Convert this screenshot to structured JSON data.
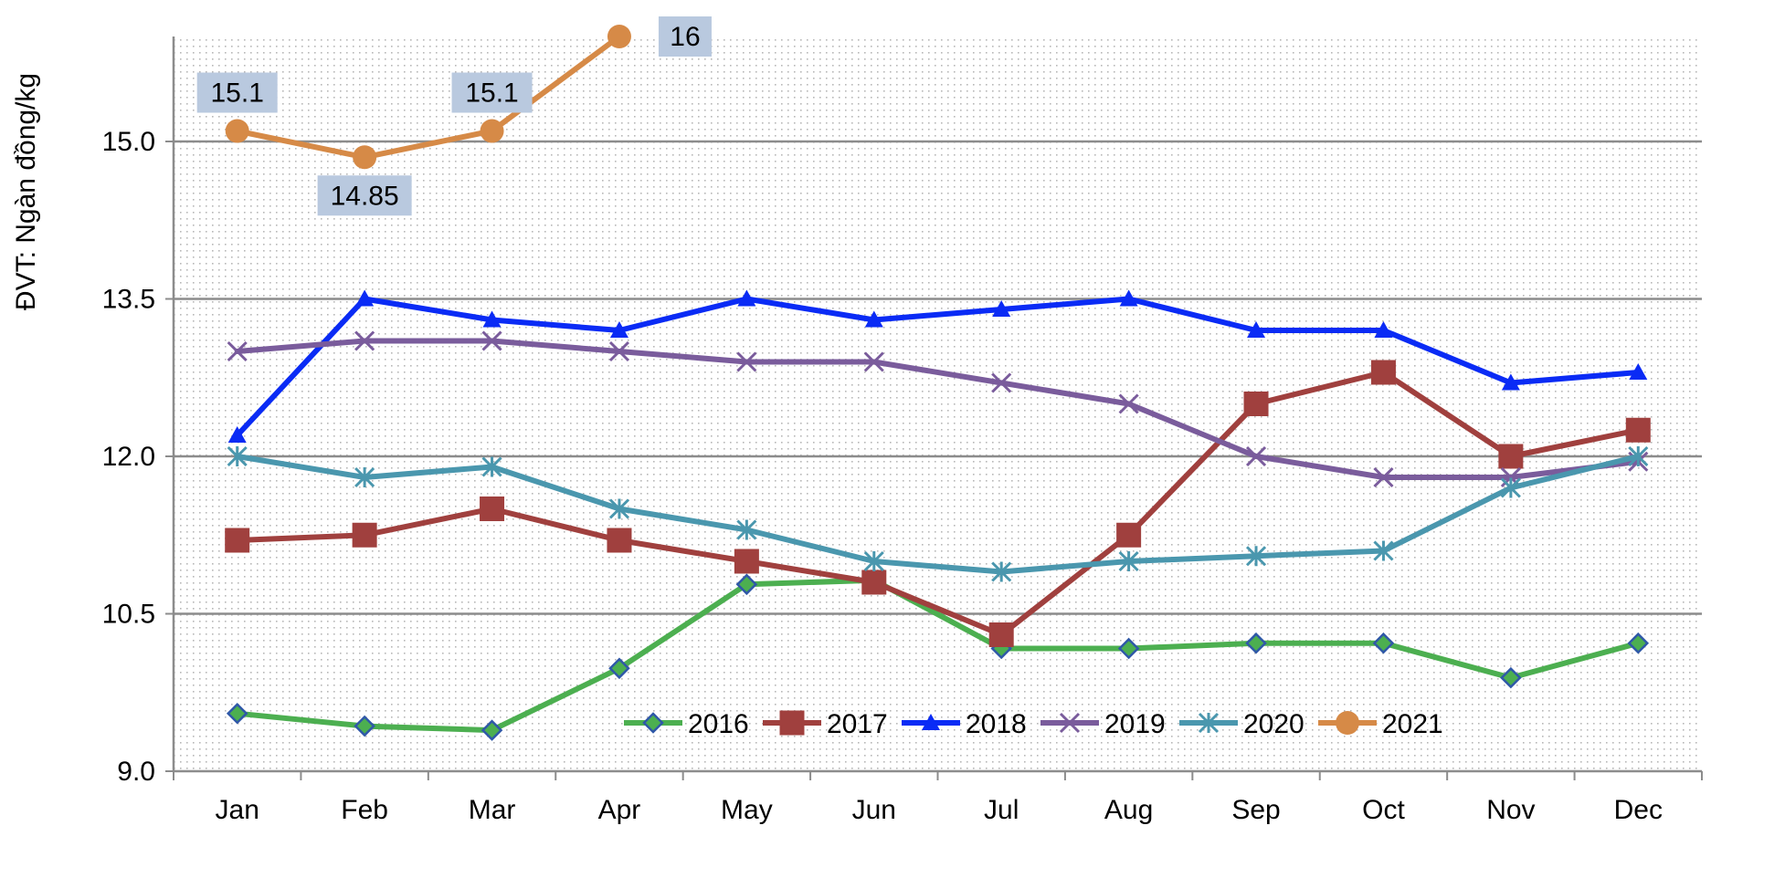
{
  "chart_data": {
    "type": "line",
    "title": "",
    "xlabel": "",
    "ylabel": "ĐVT: Ngàn đồng/kg",
    "categories": [
      "Jan",
      "Feb",
      "Mar",
      "Apr",
      "May",
      "Jun",
      "Jul",
      "Aug",
      "Sep",
      "Oct",
      "Nov",
      "Dec"
    ],
    "y_ticks": [
      "9.0",
      "10.5",
      "12.0",
      "13.5",
      "15.0"
    ],
    "ylim": [
      9.0,
      16.0
    ],
    "grid": true,
    "legend_position": "bottom-right inside",
    "series": [
      {
        "name": "2016",
        "color": "#4CAF50",
        "marker": "diamond",
        "values": [
          9.55,
          9.43,
          9.39,
          9.98,
          10.78,
          10.82,
          10.17,
          10.17,
          10.22,
          10.22,
          9.89,
          10.22
        ]
      },
      {
        "name": "2017",
        "color": "#A0403E",
        "marker": "square",
        "values": [
          11.2,
          11.25,
          11.5,
          11.2,
          11.0,
          10.8,
          10.3,
          11.25,
          12.5,
          12.8,
          12.0,
          12.25
        ]
      },
      {
        "name": "2018",
        "color": "#0A2BF5",
        "marker": "triangle",
        "values": [
          12.2,
          13.5,
          13.3,
          13.2,
          13.5,
          13.3,
          13.4,
          13.5,
          13.2,
          13.2,
          12.7,
          12.8
        ]
      },
      {
        "name": "2019",
        "color": "#7A5C9C",
        "marker": "x",
        "values": [
          13.0,
          13.1,
          13.1,
          13.0,
          12.9,
          12.9,
          12.7,
          12.5,
          12.0,
          11.8,
          11.8,
          11.95
        ]
      },
      {
        "name": "2020",
        "color": "#4A97AE",
        "marker": "asterisk",
        "values": [
          12.0,
          11.8,
          11.9,
          11.5,
          11.3,
          11.0,
          10.9,
          11.0,
          11.05,
          11.1,
          11.7,
          12.0
        ]
      },
      {
        "name": "2021",
        "color": "#D68A47",
        "marker": "circle",
        "values": [
          15.1,
          14.85,
          15.1,
          16.0,
          null,
          null,
          null,
          null,
          null,
          null,
          null,
          null
        ],
        "data_labels": [
          "15.1",
          "14.85",
          "15.1",
          "16"
        ]
      }
    ]
  }
}
